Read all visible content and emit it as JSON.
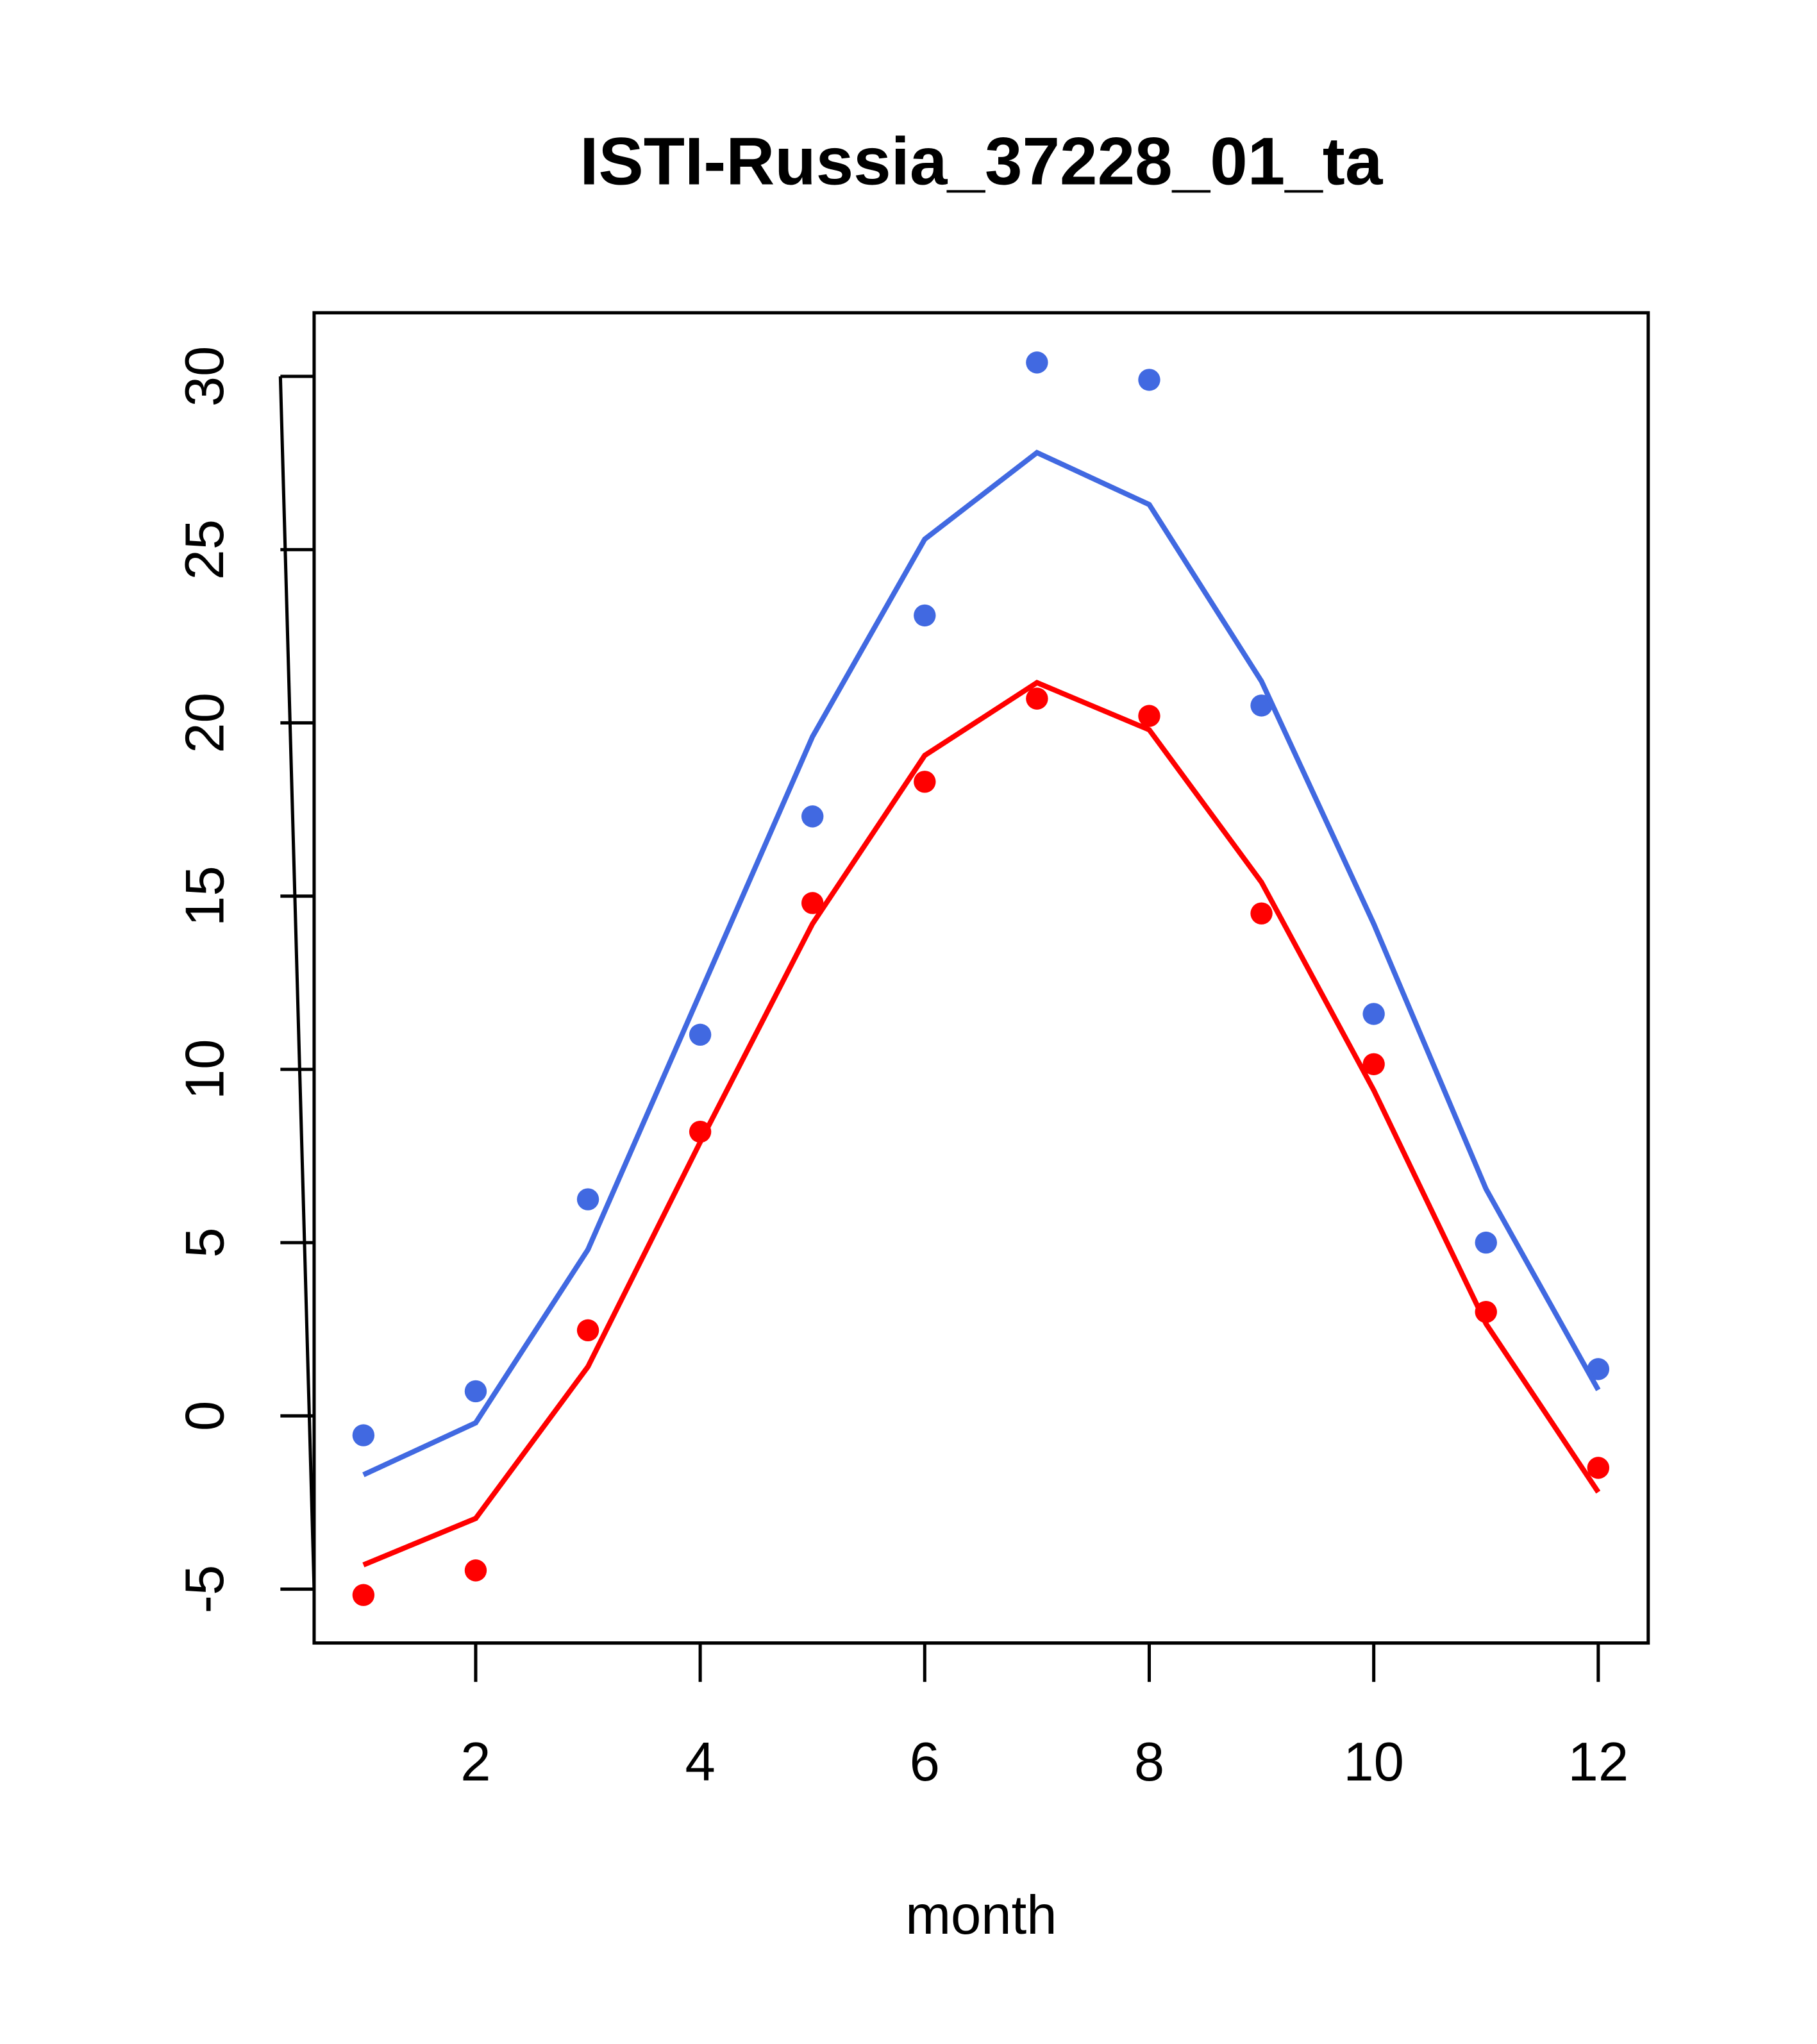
{
  "chart_data": {
    "type": "line",
    "title": "ISTI-Russia_37228_01_ta",
    "xlabel": "month",
    "ylabel": "",
    "xlim": [
      0.55,
      12.45
    ],
    "ylim": [
      -6.4,
      31.9
    ],
    "xticks": [
      2,
      4,
      6,
      8,
      10,
      12
    ],
    "yticks": [
      -5,
      0,
      5,
      10,
      15,
      20,
      25,
      30
    ],
    "grid": false,
    "x": [
      1,
      2,
      3,
      4,
      5,
      6,
      7,
      8,
      9,
      10,
      11,
      12
    ],
    "series": [
      {
        "name": "blue points",
        "kind": "points",
        "color": "#4169E1",
        "values": [
          -0.56,
          0.71,
          6.25,
          11.0,
          17.3,
          23.1,
          30.4,
          29.9,
          20.5,
          11.6,
          5.0,
          1.35
        ]
      },
      {
        "name": "blue line",
        "kind": "line",
        "color": "#4169E1",
        "values": [
          -1.7,
          -0.2,
          4.8,
          12.2,
          19.6,
          25.3,
          27.8,
          26.3,
          21.2,
          14.2,
          6.55,
          0.75
        ]
      },
      {
        "name": "red points",
        "kind": "points",
        "color": "#FF0000",
        "values": [
          -5.17,
          -4.46,
          2.47,
          8.2,
          14.8,
          18.3,
          20.7,
          20.2,
          14.5,
          10.15,
          3.0,
          -1.5
        ]
      },
      {
        "name": "red line",
        "kind": "line",
        "color": "#FF0000",
        "values": [
          -4.3,
          -2.96,
          1.42,
          7.9,
          14.2,
          19.06,
          21.16,
          19.8,
          15.4,
          9.4,
          2.66,
          -2.2
        ]
      }
    ]
  }
}
